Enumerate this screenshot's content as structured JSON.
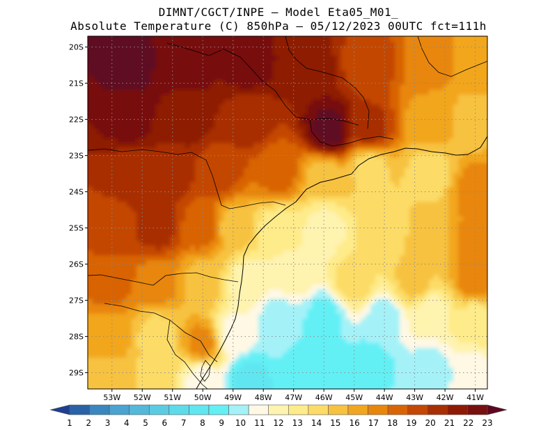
{
  "title_line1": "DIMNT/CGCT/INPE —  Model Eta05_M01_",
  "title_line2": "Absolute Temperature (C) 850hPa —  05/12/2023 00UTC fct=111h",
  "map": {
    "lon_range": [
      -53.8,
      -40.6
    ],
    "lat_range": [
      -29.45,
      -19.7
    ],
    "lon_ticks": [
      {
        "v": -53,
        "label": "53W"
      },
      {
        "v": -52,
        "label": "52W"
      },
      {
        "v": -51,
        "label": "51W"
      },
      {
        "v": -50,
        "label": "50W"
      },
      {
        "v": -49,
        "label": "49W"
      },
      {
        "v": -48,
        "label": "48W"
      },
      {
        "v": -47,
        "label": "47W"
      },
      {
        "v": -46,
        "label": "46W"
      },
      {
        "v": -45,
        "label": "45W"
      },
      {
        "v": -44,
        "label": "44W"
      },
      {
        "v": -43,
        "label": "43W"
      },
      {
        "v": -42,
        "label": "42W"
      },
      {
        "v": -41,
        "label": "41W"
      }
    ],
    "lat_ticks": [
      {
        "v": -20,
        "label": "20S"
      },
      {
        "v": -21,
        "label": "21S"
      },
      {
        "v": -22,
        "label": "22S"
      },
      {
        "v": -23,
        "label": "23S"
      },
      {
        "v": -24,
        "label": "24S"
      },
      {
        "v": -25,
        "label": "25S"
      },
      {
        "v": -26,
        "label": "26S"
      },
      {
        "v": -27,
        "label": "27S"
      },
      {
        "v": -28,
        "label": "28S"
      },
      {
        "v": -29,
        "label": "29S"
      }
    ],
    "grid_lines": "dotted",
    "temperature_field": [
      {
        "lon": -52.5,
        "lat": -20.5,
        "t": 23
      },
      {
        "lon": -50.5,
        "lat": -20.5,
        "t": 22
      },
      {
        "lon": -48.5,
        "lat": -20.5,
        "t": 22
      },
      {
        "lon": -46.5,
        "lat": -20.5,
        "t": 21
      },
      {
        "lon": -44.5,
        "lat": -20.5,
        "t": 19
      },
      {
        "lon": -42.5,
        "lat": -20.5,
        "t": 17
      },
      {
        "lon": -41,
        "lat": -20.5,
        "t": 16
      },
      {
        "lon": -52.5,
        "lat": -22,
        "t": 22
      },
      {
        "lon": -50.5,
        "lat": -22,
        "t": 21
      },
      {
        "lon": -48.5,
        "lat": -22,
        "t": 20
      },
      {
        "lon": -45.8,
        "lat": -22.3,
        "t": 23
      },
      {
        "lon": -44.5,
        "lat": -22.3,
        "t": 20
      },
      {
        "lon": -42.5,
        "lat": -22,
        "t": 16
      },
      {
        "lon": -41,
        "lat": -22,
        "t": 15
      },
      {
        "lon": -52.5,
        "lat": -23.5,
        "t": 20
      },
      {
        "lon": -51,
        "lat": -23.5,
        "t": 20
      },
      {
        "lon": -49.5,
        "lat": -23.5,
        "t": 19
      },
      {
        "lon": -47.5,
        "lat": -23.5,
        "t": 18
      },
      {
        "lon": -46,
        "lat": -23.6,
        "t": 15
      },
      {
        "lon": -44.5,
        "lat": -23.3,
        "t": 14
      },
      {
        "lon": -42.5,
        "lat": -23.5,
        "t": 14
      },
      {
        "lon": -41,
        "lat": -24,
        "t": 17
      },
      {
        "lon": -53,
        "lat": -25,
        "t": 19
      },
      {
        "lon": -51.5,
        "lat": -25,
        "t": 20
      },
      {
        "lon": -50,
        "lat": -25,
        "t": 18
      },
      {
        "lon": -49,
        "lat": -25,
        "t": 15
      },
      {
        "lon": -47.5,
        "lat": -25,
        "t": 13
      },
      {
        "lon": -46,
        "lat": -25,
        "t": 12
      },
      {
        "lon": -44,
        "lat": -25,
        "t": 14
      },
      {
        "lon": -42.5,
        "lat": -25.3,
        "t": 15
      },
      {
        "lon": -41,
        "lat": -25.5,
        "t": 17
      },
      {
        "lon": -53,
        "lat": -26.5,
        "t": 18
      },
      {
        "lon": -51.5,
        "lat": -26.5,
        "t": 17
      },
      {
        "lon": -50,
        "lat": -26.5,
        "t": 15
      },
      {
        "lon": -48.5,
        "lat": -26.5,
        "t": 12
      },
      {
        "lon": -47,
        "lat": -26.3,
        "t": 12
      },
      {
        "lon": -45,
        "lat": -26.5,
        "t": 14
      },
      {
        "lon": -43,
        "lat": -26.5,
        "t": 15
      },
      {
        "lon": -41,
        "lat": -26.5,
        "t": 17
      },
      {
        "lon": -53,
        "lat": -28,
        "t": 16
      },
      {
        "lon": -51.5,
        "lat": -28,
        "t": 14
      },
      {
        "lon": -50,
        "lat": -28.2,
        "t": 17
      },
      {
        "lon": -49,
        "lat": -28,
        "t": 11
      },
      {
        "lon": -47.5,
        "lat": -27.5,
        "t": 10
      },
      {
        "lon": -46,
        "lat": -27.5,
        "t": 9
      },
      {
        "lon": -44,
        "lat": -27.5,
        "t": 10
      },
      {
        "lon": -42.5,
        "lat": -27.3,
        "t": 12
      },
      {
        "lon": -41,
        "lat": -27.5,
        "t": 13
      },
      {
        "lon": -53,
        "lat": -29.2,
        "t": 15
      },
      {
        "lon": -51.5,
        "lat": -29.2,
        "t": 14
      },
      {
        "lon": -50,
        "lat": -29.2,
        "t": 11
      },
      {
        "lon": -48.5,
        "lat": -29.2,
        "t": 8
      },
      {
        "lon": -46.5,
        "lat": -28.8,
        "t": 9
      },
      {
        "lon": -44.5,
        "lat": -28.8,
        "t": 9
      },
      {
        "lon": -42.5,
        "lat": -29,
        "t": 10
      },
      {
        "lon": -41,
        "lat": -29.2,
        "t": 11
      }
    ]
  },
  "colorbar": {
    "labels": [
      "1",
      "2",
      "3",
      "4",
      "5",
      "6",
      "7",
      "8",
      "9",
      "10",
      "11",
      "12",
      "13",
      "14",
      "15",
      "16",
      "17",
      "18",
      "19",
      "20",
      "21",
      "22",
      "23"
    ],
    "colors": [
      "#1f3f8f",
      "#2a62a7",
      "#3a86bf",
      "#4aa3d0",
      "#53b8da",
      "#5bcbe3",
      "#5edbea",
      "#60e6f0",
      "#62f0f5",
      "#a4f2f8",
      "#fff8e4",
      "#fff3b0",
      "#feeb8a",
      "#fcdc66",
      "#f7c240",
      "#f2a61f",
      "#e8860c",
      "#d86406",
      "#c44705",
      "#a82e04",
      "#8e1a06",
      "#78100f",
      "#5e0720"
    ]
  }
}
